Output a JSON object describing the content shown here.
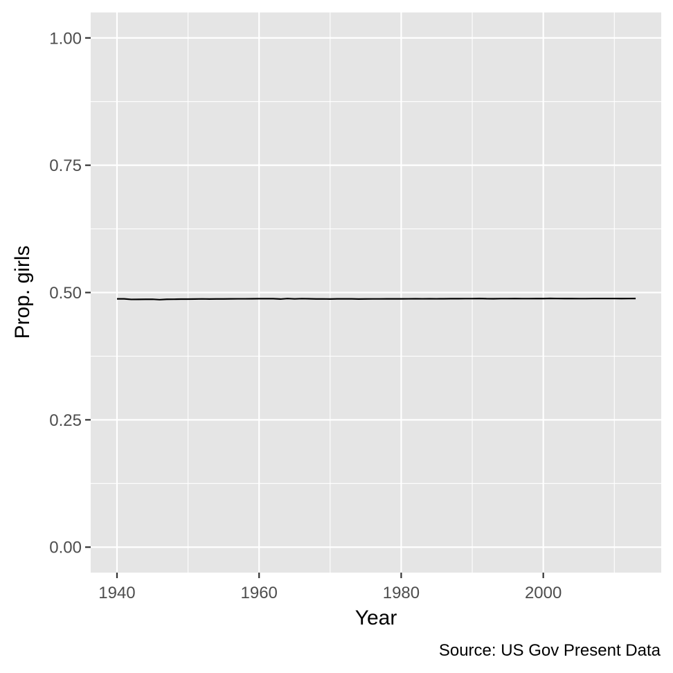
{
  "chart_data": {
    "type": "line",
    "xlabel": "Year",
    "ylabel": "Prop. girls",
    "caption": "Source: US Gov Present Data",
    "xlim": [
      1936.3,
      2016.6
    ],
    "ylim": [
      -0.05,
      1.05
    ],
    "x_ticks": [
      1940,
      1960,
      1980,
      2000
    ],
    "x_tick_labels": [
      "1940",
      "1960",
      "1980",
      "2000"
    ],
    "y_ticks": [
      0,
      0.25,
      0.5,
      0.75,
      1
    ],
    "y_tick_labels": [
      "0.00",
      "0.25",
      "0.50",
      "0.75",
      "1.00"
    ],
    "x_minor_breaks": [
      1950,
      1970,
      1990,
      2010
    ],
    "y_minor_breaks": [
      0.125,
      0.375,
      0.625,
      0.875
    ],
    "grid": true,
    "legend": "none",
    "colors": {
      "panel_background": "#e5e5e5",
      "grid": "#ffffff",
      "line": "#000000",
      "tick_text": "#4d4d4d",
      "tick_mark": "#333333"
    },
    "series": [
      {
        "x": [
          1940,
          1941,
          1942,
          1943,
          1944,
          1945,
          1946,
          1947,
          1948,
          1949,
          1950,
          1951,
          1952,
          1953,
          1954,
          1955,
          1956,
          1957,
          1958,
          1959,
          1960,
          1961,
          1962,
          1963,
          1964,
          1965,
          1966,
          1967,
          1968,
          1969,
          1970,
          1971,
          1972,
          1973,
          1974,
          1975,
          1976,
          1977,
          1978,
          1979,
          1980,
          1981,
          1982,
          1983,
          1984,
          1985,
          1986,
          1987,
          1988,
          1989,
          1990,
          1991,
          1992,
          1993,
          1994,
          1995,
          1996,
          1997,
          1998,
          1999,
          2000,
          2001,
          2002,
          2003,
          2004,
          2005,
          2006,
          2007,
          2008,
          2009,
          2010,
          2011,
          2012,
          2013
        ],
        "y": [
          0.4876,
          0.4876,
          0.4865,
          0.4866,
          0.4867,
          0.4868,
          0.486,
          0.4867,
          0.4868,
          0.4871,
          0.4871,
          0.4873,
          0.4875,
          0.4872,
          0.4874,
          0.4874,
          0.4876,
          0.4877,
          0.4877,
          0.4878,
          0.4879,
          0.4879,
          0.4879,
          0.4872,
          0.4882,
          0.4875,
          0.488,
          0.4878,
          0.4874,
          0.4875,
          0.4873,
          0.4876,
          0.4876,
          0.4876,
          0.4873,
          0.4874,
          0.4875,
          0.4875,
          0.4876,
          0.4876,
          0.4876,
          0.4877,
          0.4878,
          0.4877,
          0.4878,
          0.4877,
          0.4878,
          0.4879,
          0.4879,
          0.488,
          0.488,
          0.4883,
          0.4879,
          0.4878,
          0.488,
          0.488,
          0.4881,
          0.488,
          0.488,
          0.4881,
          0.4881,
          0.4884,
          0.4882,
          0.4881,
          0.4881,
          0.488,
          0.488,
          0.4882,
          0.4882,
          0.4882,
          0.4882,
          0.4881,
          0.4882,
          0.4883
        ]
      }
    ]
  }
}
